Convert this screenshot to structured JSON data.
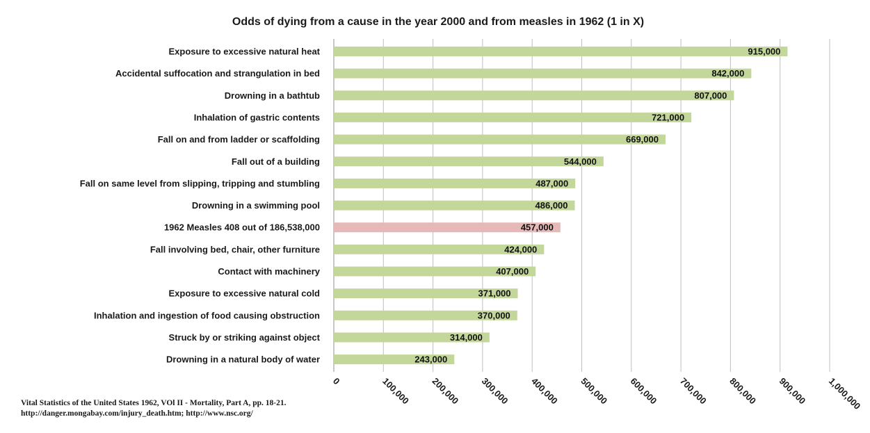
{
  "chart_data": {
    "type": "bar",
    "orientation": "horizontal",
    "title": "Odds of dying from a cause in the year 2000 and from measles in 1962 (1 in X)",
    "categories": [
      "Exposure to excessive natural heat",
      "Accidental suffocation and strangulation in bed",
      "Drowning in a bathtub",
      "Inhalation of gastric contents",
      "Fall on and from ladder or scaffolding",
      "Fall out of a building",
      "Fall on same level from slipping, tripping and stumbling",
      "Drowning in a swimming pool",
      "1962 Measles 408 out of 186,538,000",
      "Fall involving bed, chair, other furniture",
      "Contact with machinery",
      "Exposure to excessive natural cold",
      "Inhalation and ingestion of food causing obstruction",
      "Struck by or striking against object",
      "Drowning in a natural body of water"
    ],
    "values": [
      915000,
      842000,
      807000,
      721000,
      669000,
      544000,
      487000,
      486000,
      457000,
      424000,
      407000,
      371000,
      370000,
      314000,
      243000
    ],
    "value_labels": [
      "915,000",
      "842,000",
      "807,000",
      "721,000",
      "669,000",
      "544,000",
      "487,000",
      "486,000",
      "457,000",
      "424,000",
      "407,000",
      "371,000",
      "370,000",
      "314,000",
      "243,000"
    ],
    "highlight_category": "1962 Measles 408 out of 186,538,000",
    "xlim": [
      0,
      1000000
    ],
    "x_ticks": [
      0,
      100000,
      200000,
      300000,
      400000,
      500000,
      600000,
      700000,
      800000,
      900000,
      1000000
    ],
    "x_tick_labels": [
      "0",
      "100,000",
      "200,000",
      "300,000",
      "400,000",
      "500,000",
      "600,000",
      "700,000",
      "800,000",
      "900,000",
      "1,000,000"
    ],
    "xlabel": "",
    "ylabel": "",
    "grid": "vertical",
    "legend": "none",
    "colors": {
      "bar": "#c4d79b",
      "highlight_bar": "#e6b9b8",
      "gridline": "#bfbfbf"
    }
  },
  "source": {
    "line1": "Vital Statistics of the United States 1962, VOl II - Mortality, Part A, pp. 18-21.",
    "line2": "http://danger.mongabay.com/injury_death.htm; http://www.nsc.org/"
  }
}
